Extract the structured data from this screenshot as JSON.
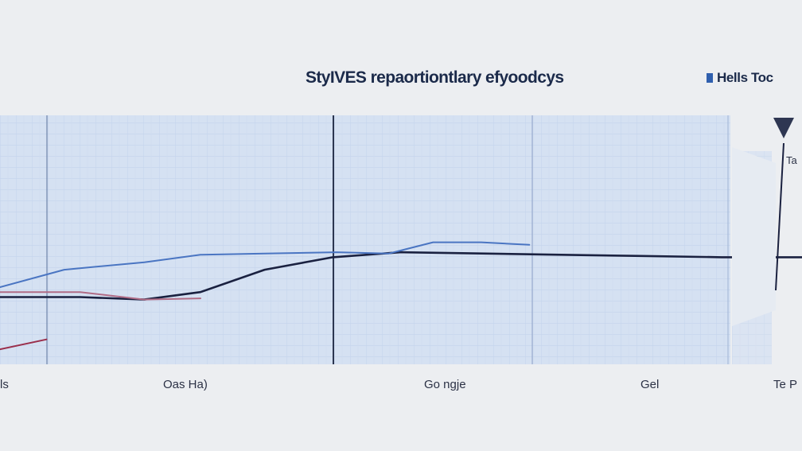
{
  "chart_data": {
    "type": "line",
    "title": "StyIVES repaortiontlary efyoodcys",
    "xlabel": "",
    "ylabel": "",
    "legend_position": "top-right",
    "grid": true,
    "x_tick_labels": [
      "ls",
      "Oas Ha)",
      "Go ngje",
      "Gel",
      "Te P"
    ],
    "side_label": "Ta",
    "xlim": [
      0,
      1
    ],
    "ylim": [
      0,
      1
    ],
    "series": [
      {
        "name": "Hells Toc",
        "color": "#1a2140",
        "points": [
          [
            0.0,
            0.27
          ],
          [
            0.1,
            0.27
          ],
          [
            0.18,
            0.26
          ],
          [
            0.25,
            0.29
          ],
          [
            0.33,
            0.38
          ],
          [
            0.415,
            0.43
          ],
          [
            0.5,
            0.45
          ],
          [
            0.6,
            0.445
          ],
          [
            0.7,
            0.44
          ],
          [
            0.8,
            0.435
          ],
          [
            0.9,
            0.43
          ],
          [
            1.0,
            0.43
          ]
        ]
      },
      {
        "color": "#9a2f4c",
        "points": [
          [
            0.0,
            0.06
          ],
          [
            0.058,
            0.1
          ]
        ]
      },
      {
        "color": "#b06c86",
        "points": [
          [
            0.0,
            0.29
          ],
          [
            0.1,
            0.29
          ],
          [
            0.18,
            0.26
          ],
          [
            0.25,
            0.265
          ]
        ]
      },
      {
        "color": "#4a75c2",
        "points": [
          [
            0.0,
            0.31
          ],
          [
            0.08,
            0.38
          ],
          [
            0.18,
            0.41
          ],
          [
            0.25,
            0.44
          ],
          [
            0.33,
            0.445
          ],
          [
            0.42,
            0.45
          ],
          [
            0.485,
            0.445
          ],
          [
            0.54,
            0.49
          ],
          [
            0.6,
            0.49
          ],
          [
            0.66,
            0.48
          ]
        ]
      }
    ]
  }
}
